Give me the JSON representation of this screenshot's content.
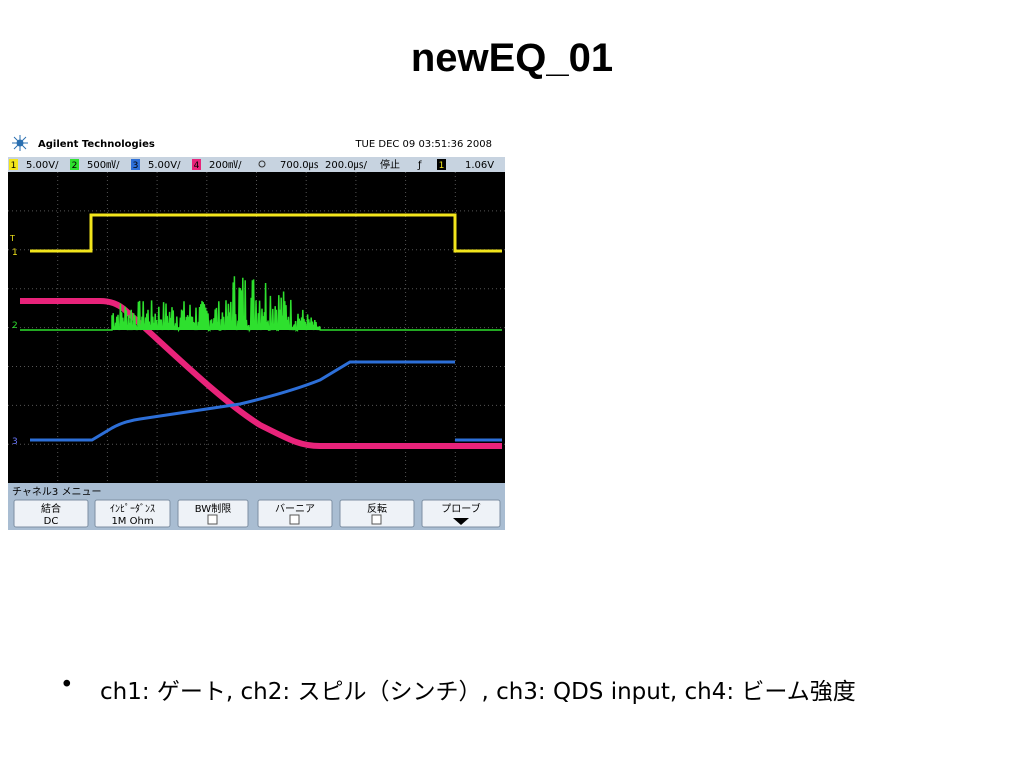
{
  "title": "newEQ_01",
  "scope": {
    "brand": "Agilent Technologies",
    "timestamp": "TUE DEC 09 03:51:36 2008",
    "status_bar": {
      "channels": [
        {
          "number": "1",
          "scale": "5.00V/"
        },
        {
          "number": "2",
          "scale": "500㎷/"
        },
        {
          "number": "3",
          "scale": "5.00V/"
        },
        {
          "number": "4",
          "scale": "200㎷/"
        }
      ],
      "delay": "700.0㎲",
      "timebase": "200.0㎲/",
      "run_state": "停止",
      "trigger_slope": "ƒ",
      "trigger_source": "1",
      "trigger_level": "1.06V"
    },
    "trace_markers": [
      "1",
      "2",
      "3"
    ],
    "menu_title": "チャネル3 メニュー",
    "softkeys": [
      {
        "label": "結合",
        "value": "DC"
      },
      {
        "label": "ｲﾝﾋﾟｰﾀﾞﾝｽ",
        "value": "1M Ohm"
      },
      {
        "label": "BW制限"
      },
      {
        "label": "バーニア"
      },
      {
        "label": "反転"
      },
      {
        "label": "プローブ"
      }
    ]
  },
  "bullets": [
    "ch1: ゲート, ch2: スピル（シンチ）, ch3: QDS input, ch4: ビーム強度"
  ]
}
